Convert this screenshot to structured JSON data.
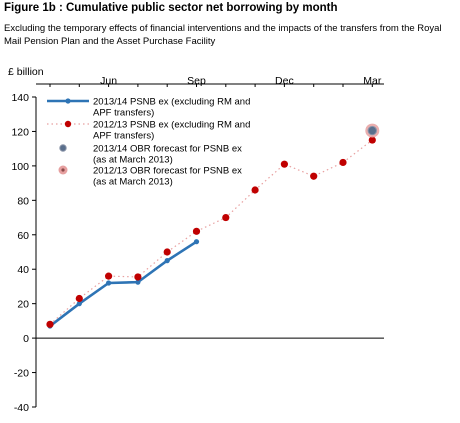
{
  "figure": {
    "title": "Figure 1b : Cumulative public sector net borrowing by month",
    "subtitle": "Excluding the temporary effects of financial interventions and the impacts of the transfers from the Royal Mail Pension Plan and the Asset Purchase Facility"
  },
  "chart_data": {
    "type": "line",
    "ylabel": "£ billion",
    "ylim": [
      -40,
      140
    ],
    "yticks": [
      "140",
      "120",
      "100",
      "80",
      "60",
      "40",
      "20",
      "0",
      "-20",
      "-40"
    ],
    "x_tick_labels": [
      {
        "label": "Jun",
        "month_index": 3
      },
      {
        "label": "Sep",
        "month_index": 6
      },
      {
        "label": "Dec",
        "month_index": 9
      },
      {
        "label": "Mar",
        "month_index": 12
      }
    ],
    "series": [
      {
        "name": "2013/14 PSNB ex (excluding RM and APF transfers)",
        "legend_lines": [
          "2013/14 PSNB ex (excluding RM and",
          "APF transfers)"
        ],
        "color": "#2e74b5",
        "style": "solid",
        "x": [
          1,
          2,
          3,
          4,
          5,
          6
        ],
        "values": [
          7,
          20,
          32,
          32.5,
          45,
          56
        ]
      },
      {
        "name": "2012/13 PSNB ex (excluding RM and APF transfers)",
        "legend_lines": [
          "2012/13 PSNB ex (excluding RM and",
          "APF transfers)"
        ],
        "color": "#c00000",
        "style": "dotted",
        "x": [
          1,
          2,
          3,
          4,
          5,
          6,
          7,
          8,
          9,
          10,
          11,
          12
        ],
        "values": [
          8,
          23,
          36,
          35.5,
          50,
          62,
          70,
          86,
          101,
          94,
          102,
          115
        ]
      },
      {
        "name": "2013/14 OBR forecast for PSNB ex (as at March 2013)",
        "legend_lines": [
          "2013/14 OBR forecast for PSNB ex",
          "(as at March 2013)"
        ],
        "color": "#4f81bd",
        "style": "marker",
        "x": [
          12
        ],
        "values": [
          120.5
        ]
      },
      {
        "name": "2012/13 OBR forecast for PSNB ex (as at March 2013)",
        "legend_lines": [
          "2012/13 OBR forecast for PSNB ex",
          "(as at March 2013)"
        ],
        "color": "#e6a0a0",
        "style": "marker",
        "x": [
          12
        ],
        "values": [
          120.5
        ]
      }
    ],
    "grid": false,
    "legend_position": "top-left"
  }
}
